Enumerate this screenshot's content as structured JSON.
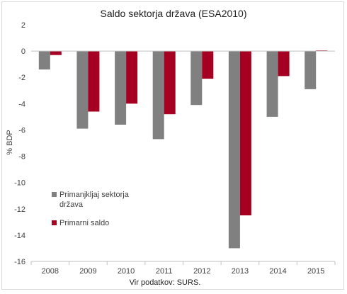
{
  "chart_data": {
    "type": "bar",
    "title": "Saldo sektorja država (ESA2010)",
    "xlabel": "",
    "ylabel": "% BDP",
    "categories": [
      "2008",
      "2009",
      "2010",
      "2011",
      "2012",
      "2013",
      "2014",
      "2015"
    ],
    "series": [
      {
        "name": "Primanjkljaj sektorja država",
        "color": "#808080",
        "values": [
          -1.4,
          -5.9,
          -5.6,
          -6.7,
          -4.1,
          -15.0,
          -5.0,
          -2.9
        ]
      },
      {
        "name": "Primarni saldo",
        "color": "#a50021",
        "values": [
          -0.3,
          -4.6,
          -4.0,
          -4.8,
          -2.1,
          -12.5,
          -1.9,
          0.05
        ]
      }
    ],
    "ylim": [
      -16,
      2
    ],
    "yticks": [
      2,
      0,
      -2,
      -4,
      -6,
      -8,
      -10,
      -12,
      -14,
      -16
    ],
    "grid": false,
    "legend_position": "inside-left"
  },
  "footer": {
    "source": "Vir podatkov: SURS."
  }
}
